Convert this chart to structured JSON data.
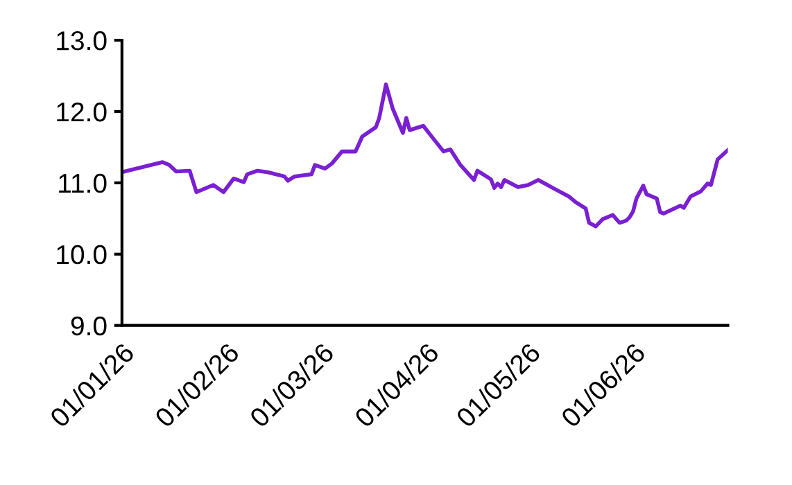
{
  "chart_data": {
    "type": "line",
    "x": [
      "2026-01-01",
      "2026-01-13",
      "2026-01-15",
      "2026-01-17",
      "2026-01-21",
      "2026-01-23",
      "2026-01-28",
      "2026-01-31",
      "2026-02-03",
      "2026-02-06",
      "2026-02-07",
      "2026-02-10",
      "2026-02-13",
      "2026-02-18",
      "2026-02-19",
      "2026-02-21",
      "2026-02-26",
      "2026-02-27",
      "2026-03-02",
      "2026-03-04",
      "2026-03-07",
      "2026-03-11",
      "2026-03-13",
      "2026-03-17",
      "2026-03-18",
      "2026-03-20",
      "2026-03-22",
      "2026-03-25",
      "2026-03-26",
      "2026-03-27",
      "2026-03-31",
      "2026-04-03",
      "2026-04-06",
      "2026-04-08",
      "2026-04-11",
      "2026-04-15",
      "2026-04-16",
      "2026-04-20",
      "2026-04-21",
      "2026-04-22",
      "2026-04-23",
      "2026-04-24",
      "2026-04-28",
      "2026-05-01",
      "2026-05-04",
      "2026-05-09",
      "2026-05-13",
      "2026-05-15",
      "2026-05-18",
      "2026-05-19",
      "2026-05-21",
      "2026-05-23",
      "2026-05-26",
      "2026-05-28",
      "2026-05-30",
      "2026-05-31",
      "2026-06-01",
      "2026-06-02",
      "2026-06-04",
      "2026-06-05",
      "2026-06-08",
      "2026-06-09",
      "2026-06-10",
      "2026-06-15",
      "2026-06-16",
      "2026-06-18",
      "2026-06-21",
      "2026-06-23",
      "2026-06-24",
      "2026-06-26",
      "2026-06-29"
    ],
    "series": [
      {
        "color": "#7a1fd2",
        "values": [
          11.15,
          11.29,
          11.25,
          11.16,
          11.17,
          10.87,
          10.97,
          10.87,
          11.06,
          11.01,
          11.12,
          11.17,
          11.15,
          11.09,
          11.03,
          11.09,
          11.12,
          11.25,
          11.2,
          11.27,
          11.44,
          11.44,
          11.65,
          11.78,
          11.91,
          12.38,
          12.04,
          11.7,
          11.91,
          11.74,
          11.8,
          11.62,
          11.44,
          11.47,
          11.25,
          11.04,
          11.17,
          11.05,
          10.93,
          10.99,
          10.94,
          11.04,
          10.94,
          10.97,
          11.04,
          10.91,
          10.81,
          10.73,
          10.64,
          10.44,
          10.39,
          10.49,
          10.55,
          10.44,
          10.47,
          10.52,
          10.6,
          10.78,
          10.96,
          10.84,
          10.78,
          10.59,
          10.57,
          10.68,
          10.65,
          10.81,
          10.88,
          10.99,
          10.97,
          11.33,
          11.46
        ]
      }
    ],
    "xlim": [
      "2026-01-01",
      "2026-06-29"
    ],
    "xticks": [
      {
        "value": "2026-01-01",
        "label": "01/01/26"
      },
      {
        "value": "2026-02-01",
        "label": "01/02/26"
      },
      {
        "value": "2026-03-01",
        "label": "01/03/26"
      },
      {
        "value": "2026-04-01",
        "label": "01/04/26"
      },
      {
        "value": "2026-05-01",
        "label": "01/05/26"
      },
      {
        "value": "2026-06-01",
        "label": "01/06/26"
      }
    ],
    "ylim": [
      9.0,
      13.0
    ],
    "yticks": [
      {
        "value": 9.0,
        "label": "9.0"
      },
      {
        "value": 10.0,
        "label": "10.0"
      },
      {
        "value": 11.0,
        "label": "11.0"
      },
      {
        "value": 12.0,
        "label": "12.0"
      },
      {
        "value": 13.0,
        "label": "13.0"
      }
    ],
    "grid": false,
    "legend": false,
    "marker": "none",
    "line_style": "solid"
  }
}
